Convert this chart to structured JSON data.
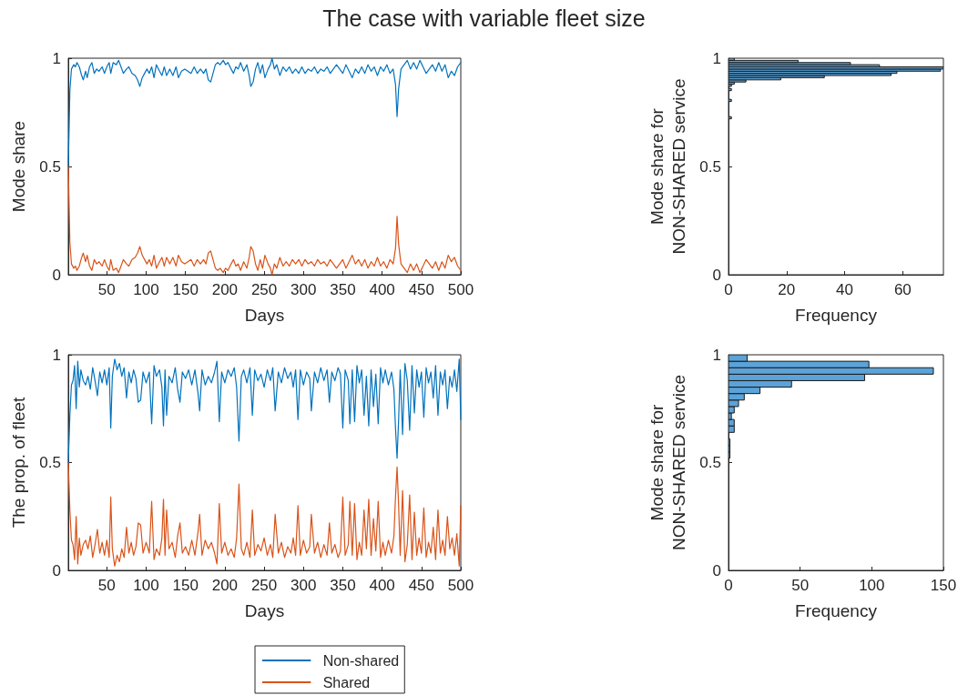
{
  "chart_data": [
    {
      "type": "line",
      "title": "The case with variable fleet size",
      "xlabel": "Days",
      "ylabel": "Mode share",
      "xlim": [
        1,
        500
      ],
      "xticks": [
        50,
        100,
        150,
        200,
        250,
        300,
        350,
        400,
        450,
        500
      ],
      "ylim": [
        0,
        1
      ],
      "yticks": [
        0,
        0.5,
        1
      ],
      "marker": "none",
      "x": [
        1,
        3,
        5,
        8,
        10,
        12,
        15,
        18,
        20,
        23,
        25,
        28,
        31,
        34,
        37,
        40,
        44,
        47,
        50,
        53,
        55,
        58,
        62,
        65,
        68,
        71,
        75,
        78,
        82,
        86,
        89,
        92,
        95,
        98,
        101,
        104,
        107,
        110,
        113,
        117,
        120,
        123,
        126,
        130,
        134,
        138,
        141,
        145,
        149,
        153,
        157,
        161,
        165,
        169,
        173,
        176,
        179,
        182,
        185,
        188,
        191,
        194,
        198,
        201,
        204,
        208,
        211,
        214,
        217,
        220,
        224,
        228,
        231,
        233,
        236,
        239,
        242,
        245,
        248,
        251,
        255,
        258,
        260,
        263,
        266,
        270,
        274,
        278,
        282,
        286,
        290,
        294,
        298,
        302,
        306,
        310,
        314,
        318,
        322,
        326,
        330,
        334,
        338,
        342,
        346,
        350,
        354,
        358,
        362,
        366,
        370,
        374,
        378,
        382,
        386,
        390,
        394,
        398,
        402,
        406,
        410,
        414,
        417,
        419,
        421,
        424,
        428,
        432,
        436,
        440,
        444,
        448,
        452,
        456,
        460,
        464,
        468,
        472,
        476,
        480,
        484,
        488,
        492,
        496,
        500
      ],
      "series": [
        {
          "color": "#0072bd",
          "values": [
            0.5,
            0.85,
            0.95,
            0.97,
            0.96,
            0.98,
            0.96,
            0.92,
            0.9,
            0.94,
            0.91,
            0.96,
            0.98,
            0.93,
            0.95,
            0.94,
            0.96,
            0.93,
            0.96,
            0.98,
            0.93,
            0.98,
            0.97,
            0.99,
            0.96,
            0.93,
            0.95,
            0.96,
            0.93,
            0.92,
            0.9,
            0.87,
            0.91,
            0.93,
            0.95,
            0.93,
            0.96,
            0.91,
            0.97,
            0.94,
            0.92,
            0.96,
            0.92,
            0.95,
            0.92,
            0.96,
            0.91,
            0.94,
            0.95,
            0.94,
            0.93,
            0.96,
            0.93,
            0.95,
            0.93,
            0.95,
            0.9,
            0.89,
            0.93,
            0.97,
            0.98,
            0.97,
            0.99,
            0.97,
            0.98,
            0.95,
            0.93,
            0.96,
            0.95,
            0.98,
            0.94,
            0.97,
            0.92,
            0.87,
            0.89,
            0.95,
            0.98,
            0.93,
            0.97,
            0.91,
            0.95,
            0.97,
            1.0,
            0.95,
            0.97,
            0.92,
            0.96,
            0.94,
            0.96,
            0.93,
            0.95,
            0.93,
            0.96,
            0.93,
            0.95,
            0.94,
            0.96,
            0.93,
            0.95,
            0.94,
            0.96,
            0.93,
            0.95,
            0.97,
            0.95,
            0.93,
            0.97,
            0.94,
            0.91,
            0.95,
            0.93,
            0.96,
            0.93,
            0.97,
            0.94,
            0.96,
            0.92,
            0.96,
            0.94,
            0.97,
            0.93,
            0.95,
            0.88,
            0.73,
            0.86,
            0.95,
            0.97,
            0.99,
            0.95,
            0.98,
            0.95,
            0.99,
            0.96,
            0.93,
            0.95,
            0.97,
            0.94,
            0.98,
            0.94,
            0.97,
            0.91,
            0.94,
            0.92,
            0.96,
            0.98
          ]
        },
        {
          "color": "#d95319",
          "values": [
            0.5,
            0.15,
            0.05,
            0.03,
            0.04,
            0.02,
            0.04,
            0.08,
            0.1,
            0.06,
            0.09,
            0.04,
            0.02,
            0.07,
            0.05,
            0.06,
            0.04,
            0.07,
            0.04,
            0.02,
            0.07,
            0.02,
            0.03,
            0.01,
            0.04,
            0.07,
            0.05,
            0.04,
            0.07,
            0.08,
            0.1,
            0.13,
            0.09,
            0.07,
            0.05,
            0.07,
            0.04,
            0.09,
            0.03,
            0.06,
            0.08,
            0.04,
            0.08,
            0.05,
            0.08,
            0.04,
            0.09,
            0.06,
            0.05,
            0.06,
            0.07,
            0.04,
            0.07,
            0.05,
            0.07,
            0.05,
            0.1,
            0.11,
            0.07,
            0.03,
            0.02,
            0.03,
            0.01,
            0.03,
            0.02,
            0.05,
            0.07,
            0.04,
            0.05,
            0.02,
            0.06,
            0.03,
            0.08,
            0.13,
            0.11,
            0.05,
            0.02,
            0.07,
            0.03,
            0.09,
            0.05,
            0.03,
            0.0,
            0.05,
            0.03,
            0.08,
            0.04,
            0.06,
            0.04,
            0.07,
            0.05,
            0.07,
            0.04,
            0.07,
            0.05,
            0.06,
            0.04,
            0.07,
            0.05,
            0.06,
            0.04,
            0.07,
            0.05,
            0.03,
            0.05,
            0.07,
            0.03,
            0.06,
            0.09,
            0.05,
            0.07,
            0.04,
            0.07,
            0.03,
            0.06,
            0.04,
            0.08,
            0.04,
            0.06,
            0.03,
            0.07,
            0.05,
            0.12,
            0.27,
            0.14,
            0.05,
            0.03,
            0.01,
            0.05,
            0.02,
            0.05,
            0.01,
            0.04,
            0.07,
            0.05,
            0.03,
            0.06,
            0.02,
            0.06,
            0.03,
            0.09,
            0.06,
            0.08,
            0.04,
            0.02
          ]
        }
      ]
    },
    {
      "type": "line",
      "xlabel": "Days",
      "ylabel": "The prop. of fleet",
      "xlim": [
        1,
        500
      ],
      "xticks": [
        50,
        100,
        150,
        200,
        250,
        300,
        350,
        400,
        450,
        500
      ],
      "ylim": [
        0,
        1
      ],
      "yticks": [
        0,
        0.5,
        1
      ],
      "marker": "none",
      "legend": "bottom",
      "x": [
        1,
        3,
        5,
        7,
        9,
        11,
        13,
        15,
        17,
        20,
        23,
        26,
        29,
        32,
        35,
        38,
        41,
        44,
        47,
        50,
        53,
        55,
        57,
        60,
        63,
        66,
        69,
        72,
        75,
        78,
        81,
        84,
        87,
        90,
        93,
        96,
        100,
        104,
        107,
        110,
        113,
        117,
        120,
        122,
        124,
        126,
        129,
        133,
        137,
        140,
        143,
        146,
        150,
        154,
        158,
        162,
        166,
        168,
        171,
        175,
        179,
        183,
        187,
        190,
        193,
        196,
        200,
        204,
        208,
        212,
        215,
        218,
        221,
        224,
        228,
        232,
        235,
        238,
        242,
        246,
        250,
        254,
        258,
        261,
        264,
        268,
        272,
        276,
        280,
        284,
        287,
        290,
        293,
        296,
        300,
        304,
        308,
        310,
        314,
        318,
        322,
        326,
        330,
        333,
        336,
        340,
        344,
        347,
        350,
        353,
        357,
        359,
        362,
        365,
        368,
        371,
        374,
        377,
        380,
        383,
        386,
        389,
        392,
        395,
        398,
        401,
        404,
        408,
        412,
        415,
        417,
        419,
        421,
        423,
        426,
        429,
        432,
        435,
        438,
        441,
        444,
        447,
        450,
        453,
        456,
        459,
        462,
        465,
        468,
        471,
        474,
        477,
        480,
        483,
        486,
        489,
        492,
        495,
        498,
        500
      ],
      "series": [
        {
          "name": "Non-shared",
          "color": "#0072bd",
          "values": [
            0.5,
            0.72,
            0.86,
            0.88,
            0.95,
            0.75,
            0.97,
            0.85,
            0.93,
            0.88,
            0.86,
            0.9,
            0.84,
            0.94,
            0.88,
            0.81,
            0.92,
            0.87,
            0.93,
            0.86,
            0.94,
            0.66,
            0.9,
            0.98,
            0.93,
            0.96,
            0.9,
            0.94,
            0.8,
            0.92,
            0.87,
            0.93,
            0.89,
            0.78,
            0.79,
            0.92,
            0.87,
            0.92,
            0.68,
            0.95,
            0.9,
            0.93,
            0.85,
            0.67,
            0.93,
            0.72,
            0.9,
            0.87,
            0.94,
            0.84,
            0.78,
            0.92,
            0.89,
            0.93,
            0.86,
            0.93,
            0.82,
            0.74,
            0.93,
            0.86,
            0.9,
            0.87,
            0.92,
            0.97,
            0.69,
            0.92,
            0.87,
            0.93,
            0.9,
            0.94,
            0.85,
            0.6,
            0.9,
            0.93,
            0.87,
            0.94,
            0.72,
            0.93,
            0.88,
            0.91,
            0.85,
            0.93,
            0.88,
            0.94,
            0.74,
            0.92,
            0.87,
            0.94,
            0.89,
            0.92,
            0.85,
            0.93,
            0.7,
            0.93,
            0.86,
            0.92,
            0.89,
            0.74,
            0.92,
            0.87,
            0.94,
            0.88,
            0.93,
            0.78,
            0.92,
            0.88,
            0.94,
            0.91,
            0.66,
            0.93,
            0.88,
            0.68,
            0.93,
            0.69,
            0.95,
            0.87,
            0.93,
            0.72,
            0.9,
            0.67,
            0.93,
            0.76,
            0.91,
            0.68,
            0.94,
            0.87,
            0.93,
            0.86,
            0.92,
            0.84,
            0.66,
            0.52,
            0.7,
            0.93,
            0.63,
            0.96,
            0.88,
            0.65,
            0.95,
            0.73,
            0.93,
            0.85,
            0.92,
            0.71,
            0.94,
            0.87,
            0.92,
            0.8,
            0.95,
            0.72,
            0.92,
            0.86,
            0.93,
            0.75,
            0.9,
            0.85,
            0.93,
            0.83,
            0.98,
            0.7
          ]
        },
        {
          "name": "Shared",
          "color": "#d95319",
          "values": [
            0.5,
            0.28,
            0.14,
            0.12,
            0.05,
            0.25,
            0.03,
            0.15,
            0.07,
            0.12,
            0.14,
            0.1,
            0.16,
            0.06,
            0.12,
            0.19,
            0.08,
            0.13,
            0.07,
            0.14,
            0.06,
            0.34,
            0.1,
            0.02,
            0.07,
            0.04,
            0.1,
            0.06,
            0.2,
            0.08,
            0.13,
            0.07,
            0.11,
            0.22,
            0.21,
            0.08,
            0.13,
            0.08,
            0.32,
            0.05,
            0.1,
            0.07,
            0.15,
            0.33,
            0.07,
            0.28,
            0.1,
            0.13,
            0.06,
            0.16,
            0.22,
            0.08,
            0.11,
            0.07,
            0.14,
            0.07,
            0.18,
            0.26,
            0.07,
            0.14,
            0.1,
            0.13,
            0.08,
            0.03,
            0.31,
            0.08,
            0.13,
            0.07,
            0.1,
            0.06,
            0.15,
            0.4,
            0.1,
            0.07,
            0.13,
            0.06,
            0.28,
            0.07,
            0.12,
            0.09,
            0.15,
            0.07,
            0.12,
            0.06,
            0.26,
            0.08,
            0.13,
            0.06,
            0.11,
            0.08,
            0.15,
            0.07,
            0.3,
            0.07,
            0.14,
            0.08,
            0.11,
            0.26,
            0.08,
            0.13,
            0.06,
            0.12,
            0.07,
            0.22,
            0.08,
            0.12,
            0.06,
            0.09,
            0.34,
            0.07,
            0.12,
            0.32,
            0.07,
            0.31,
            0.05,
            0.13,
            0.07,
            0.28,
            0.1,
            0.33,
            0.07,
            0.24,
            0.09,
            0.32,
            0.06,
            0.13,
            0.07,
            0.14,
            0.08,
            0.16,
            0.34,
            0.48,
            0.3,
            0.07,
            0.37,
            0.04,
            0.12,
            0.35,
            0.05,
            0.27,
            0.07,
            0.15,
            0.08,
            0.29,
            0.06,
            0.13,
            0.08,
            0.2,
            0.05,
            0.28,
            0.08,
            0.14,
            0.07,
            0.25,
            0.1,
            0.15,
            0.07,
            0.17,
            0.02,
            0.3
          ]
        }
      ]
    },
    {
      "type": "histogram",
      "orientation": "horizontal",
      "xlabel": "Frequency",
      "ylabel": "Mode share for\nNON-SHARED service",
      "color": "#5ba3d9",
      "xlim": [
        0,
        74
      ],
      "xticks": [
        0,
        20,
        40,
        60
      ],
      "ylim": [
        0,
        1
      ],
      "yticks": [
        0,
        0.5,
        1
      ],
      "bins": [
        0.72,
        0.73,
        0.74,
        0.75,
        0.76,
        0.77,
        0.78,
        0.79,
        0.8,
        0.81,
        0.82,
        0.83,
        0.84,
        0.85,
        0.86,
        0.87,
        0.88,
        0.89,
        0.9,
        0.91,
        0.92,
        0.93,
        0.94,
        0.95,
        0.96,
        0.97,
        0.98,
        0.99,
        1.0
      ],
      "values": [
        1,
        0,
        0,
        0,
        0,
        0,
        0,
        0,
        1,
        0,
        0,
        0,
        0,
        1,
        0,
        1,
        2,
        6,
        18,
        33,
        56,
        58,
        73,
        74,
        52,
        42,
        24,
        2
      ]
    },
    {
      "type": "histogram",
      "orientation": "horizontal",
      "xlabel": "Frequency",
      "ylabel": "Mode share for\nNON-SHARED service",
      "color": "#5ba3d9",
      "xlim": [
        0,
        150
      ],
      "xticks": [
        0,
        50,
        100,
        150
      ],
      "ylim": [
        0,
        1
      ],
      "yticks": [
        0,
        0.5,
        1
      ],
      "bins": [
        0.52,
        0.55,
        0.58,
        0.61,
        0.64,
        0.67,
        0.7,
        0.73,
        0.76,
        0.79,
        0.82,
        0.85,
        0.88,
        0.91,
        0.94,
        0.97,
        1.0
      ],
      "values": [
        1,
        1,
        1,
        0,
        4,
        4,
        2,
        4,
        7,
        11,
        22,
        44,
        95,
        143,
        98,
        13
      ]
    }
  ]
}
